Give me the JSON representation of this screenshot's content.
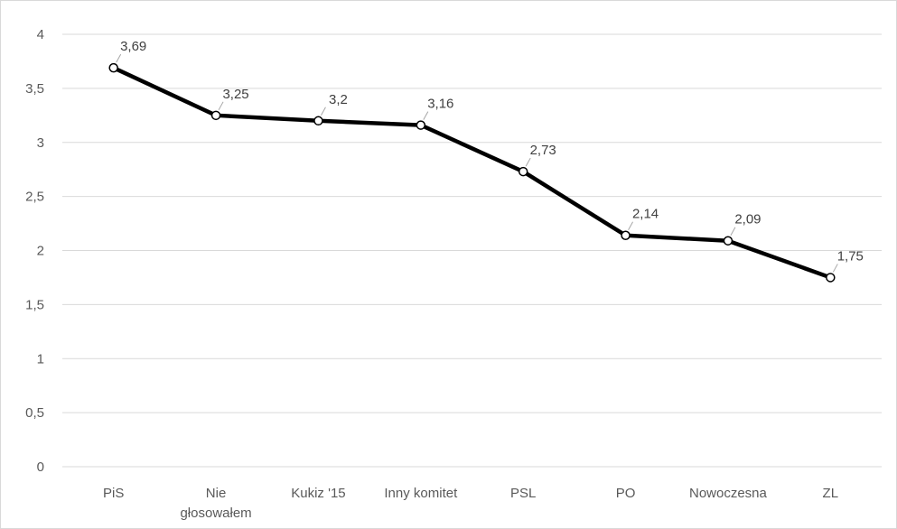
{
  "chart_data": {
    "type": "line",
    "title": "",
    "xlabel": "",
    "ylabel": "",
    "categories": [
      "PiS",
      "Nie głosowałem",
      "Kukiz '15",
      "Inny komitet",
      "PSL",
      "PO",
      "Nowoczesna",
      "ZL"
    ],
    "category_lines": [
      [
        "PiS"
      ],
      [
        "Nie",
        "głosowałem"
      ],
      [
        "Kukiz '15"
      ],
      [
        "Inny komitet"
      ],
      [
        "PSL"
      ],
      [
        "PO"
      ],
      [
        "Nowoczesna"
      ],
      [
        "ZL"
      ]
    ],
    "series": [
      {
        "values": [
          3.69,
          3.25,
          3.2,
          3.16,
          2.73,
          2.14,
          2.09,
          1.75
        ],
        "labels": [
          "3,69",
          "3,25",
          "3,2",
          "3,16",
          "2,73",
          "2,14",
          "2,09",
          "1,75"
        ],
        "color": "#000000",
        "marker": "circle"
      }
    ],
    "ylim": [
      0,
      4
    ],
    "yticks": [
      0,
      0.5,
      1,
      1.5,
      2,
      2.5,
      3,
      3.5,
      4
    ],
    "ytick_labels": [
      "0",
      "0,5",
      "1",
      "1,5",
      "2",
      "2,5",
      "3",
      "3,5",
      "4"
    ],
    "grid": true,
    "legend": "none"
  }
}
